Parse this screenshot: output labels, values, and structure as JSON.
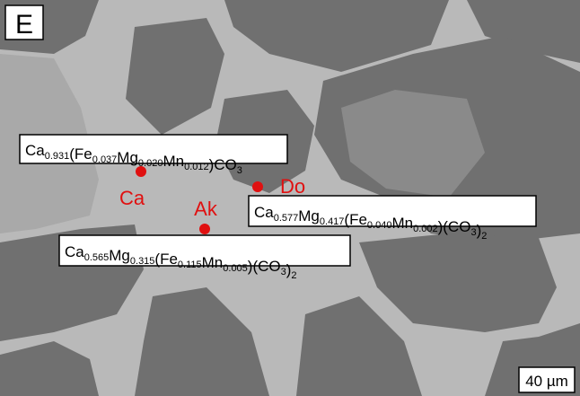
{
  "panel_label": "E",
  "phases": [
    {
      "label": "Ca",
      "formula": [
        [
          "Ca",
          "0.931"
        ],
        [
          "(Fe",
          "0.037"
        ],
        [
          "Mg",
          "0.020"
        ],
        [
          "Mn",
          "0.012"
        ],
        [
          ")CO",
          "3"
        ]
      ]
    },
    {
      "label": "Do",
      "formula": [
        [
          "Ca",
          "0.577"
        ],
        [
          "Mg",
          "0.417"
        ],
        [
          "(Fe",
          "0.040"
        ],
        [
          "Mn",
          "0.002"
        ],
        [
          ")(CO",
          "3"
        ],
        [
          ")",
          "2"
        ]
      ]
    },
    {
      "label": "Ak",
      "formula": [
        [
          "Ca",
          "0.565"
        ],
        [
          "Mg",
          "0.315"
        ],
        [
          "(Fe",
          "0.115"
        ],
        [
          "Mn",
          "0.005"
        ],
        [
          ")(CO",
          "3"
        ],
        [
          ")",
          "2"
        ]
      ]
    }
  ],
  "scale_bar": "40 µm"
}
